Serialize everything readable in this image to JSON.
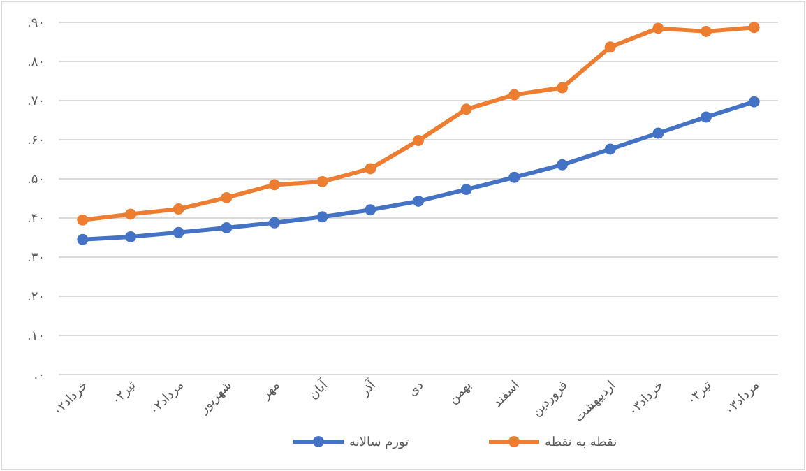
{
  "chart_data": {
    "type": "line",
    "categories": [
      "خرداد۰۲",
      "تیر۰۲",
      "مرداد۰۲",
      "شهریور",
      "مهر",
      "آبان",
      "آذر",
      "دی",
      "بهمن",
      "اسفند",
      "فروردین",
      "اردیبهشت",
      "خرداد۰۳",
      "تیر۰۳",
      "مرداد۰۳"
    ],
    "series": [
      {
        "name": "تورم سالانه",
        "color": "#4472c4",
        "values": [
          0.345,
          0.352,
          0.363,
          0.375,
          0.388,
          0.403,
          0.421,
          0.443,
          0.473,
          0.504,
          0.536,
          0.576,
          0.617,
          0.658,
          0.697
        ]
      },
      {
        "name": "نقطه به نقطه",
        "color": "#ed7d31",
        "values": [
          0.395,
          0.41,
          0.423,
          0.452,
          0.485,
          0.493,
          0.526,
          0.598,
          0.678,
          0.715,
          0.733,
          0.837,
          0.885,
          0.877,
          0.887
        ]
      }
    ],
    "ylim": [
      0,
      0.9
    ],
    "yticks": [
      {
        "value": 0,
        "label": ".۰"
      },
      {
        "value": 0.1,
        "label": ".۱۰"
      },
      {
        "value": 0.2,
        "label": ".۲۰"
      },
      {
        "value": 0.3,
        "label": ".۳۰"
      },
      {
        "value": 0.4,
        "label": ".۴۰"
      },
      {
        "value": 0.5,
        "label": ".۵۰"
      },
      {
        "value": 0.6,
        "label": ".۶۰"
      },
      {
        "value": 0.7,
        "label": ".۷۰"
      },
      {
        "value": 0.8,
        "label": ".۸۰"
      },
      {
        "value": 0.9,
        "label": ".۹۰"
      }
    ],
    "grid": "y",
    "legend": "bottom",
    "marker": "circle",
    "line_style": "solid"
  }
}
